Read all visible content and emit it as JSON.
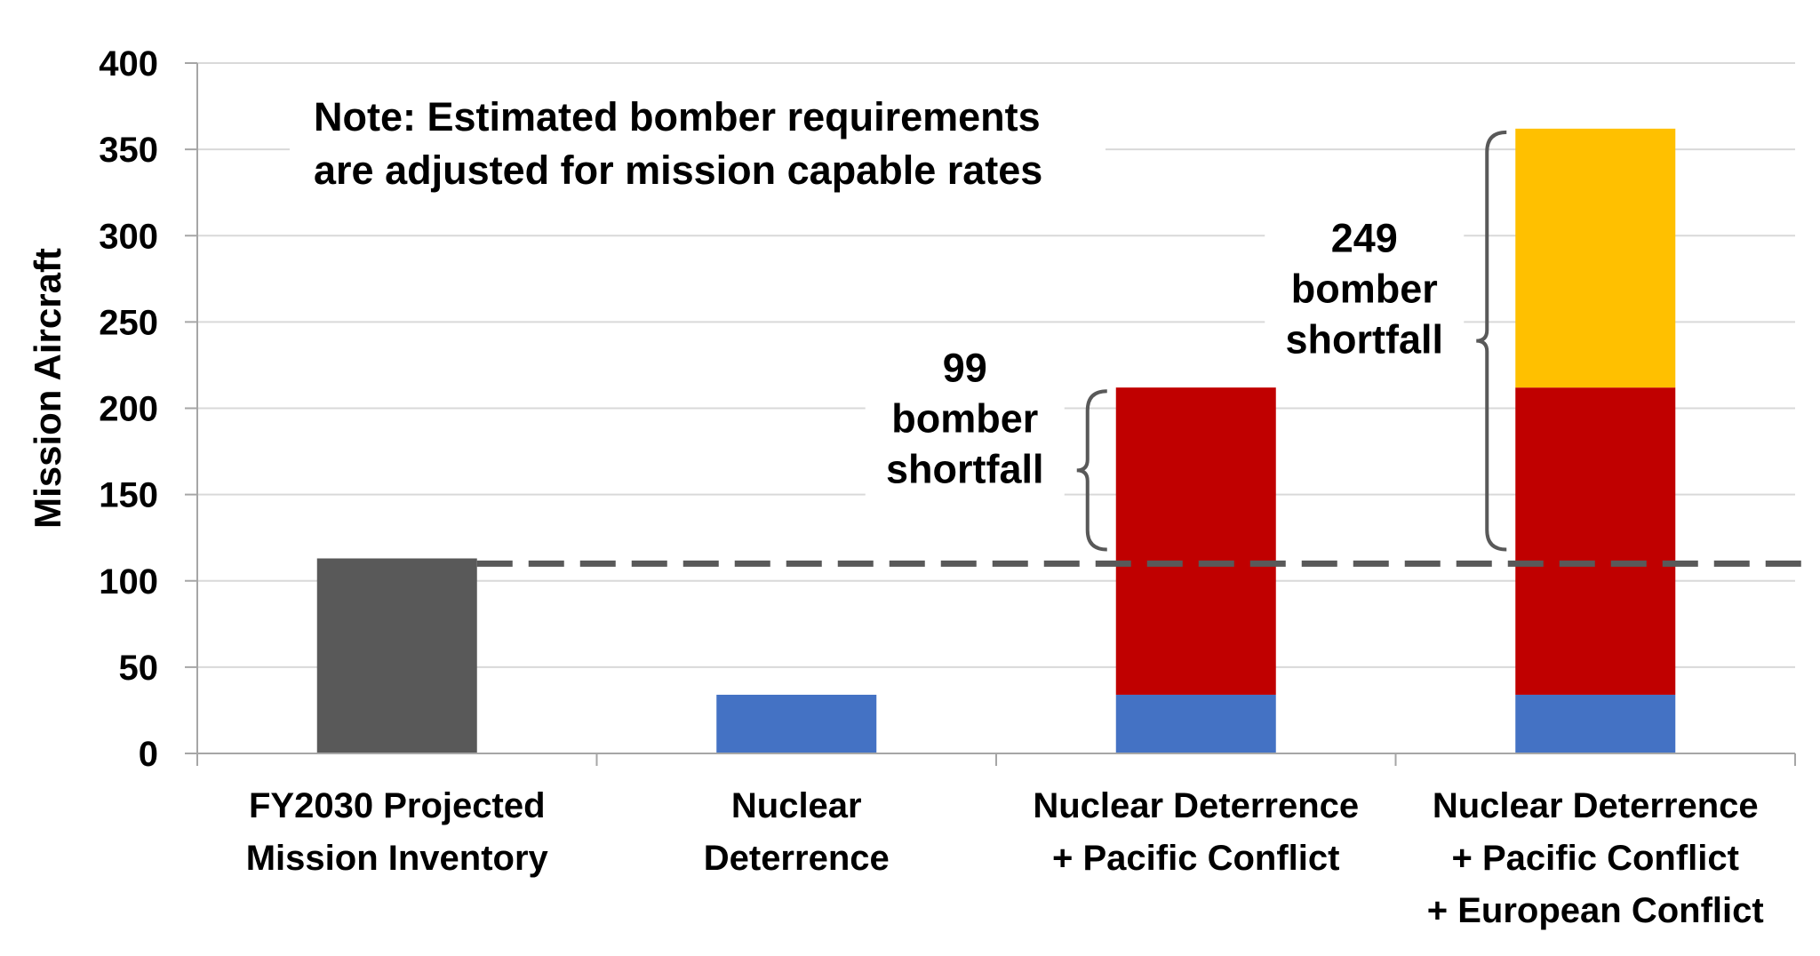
{
  "chart_data": {
    "type": "bar",
    "stacked": true,
    "title": "",
    "xlabel": "",
    "ylabel": "Mission Aircraft",
    "ylim": [
      0,
      400
    ],
    "yticks": [
      0,
      50,
      100,
      150,
      200,
      250,
      300,
      350,
      400
    ],
    "grid": true,
    "categories": [
      [
        "FY2030 Projected",
        "Mission Inventory"
      ],
      [
        "Nuclear",
        "Deterrence"
      ],
      [
        "Nuclear Deterrence",
        "+ Pacific Conflict"
      ],
      [
        "Nuclear Deterrence",
        "+ Pacific Conflict",
        "+ European Conflict"
      ]
    ],
    "series": [
      {
        "name": "Projected Inventory",
        "color": "#595959",
        "values": [
          113,
          0,
          0,
          0
        ]
      },
      {
        "name": "Nuclear Deterrence",
        "color": "#4472C4",
        "values": [
          0,
          34,
          34,
          34
        ]
      },
      {
        "name": "Pacific Conflict",
        "color": "#C00000",
        "values": [
          0,
          0,
          178,
          178
        ]
      },
      {
        "name": "European Conflict",
        "color": "#FFC000",
        "values": [
          0,
          0,
          0,
          150
        ]
      }
    ],
    "reference_line": {
      "value": 110,
      "style": "dashed",
      "color": "#595959"
    },
    "note": [
      "Note: Estimated bomber requirements",
      "are adjusted for mission capable rates"
    ],
    "annotations": [
      {
        "lines": [
          "99",
          "bomber",
          "shortfall"
        ],
        "category": 2,
        "range": [
          113,
          212
        ]
      },
      {
        "lines": [
          "249",
          "bomber",
          "shortfall"
        ],
        "category": 3,
        "range": [
          113,
          362
        ]
      }
    ]
  }
}
